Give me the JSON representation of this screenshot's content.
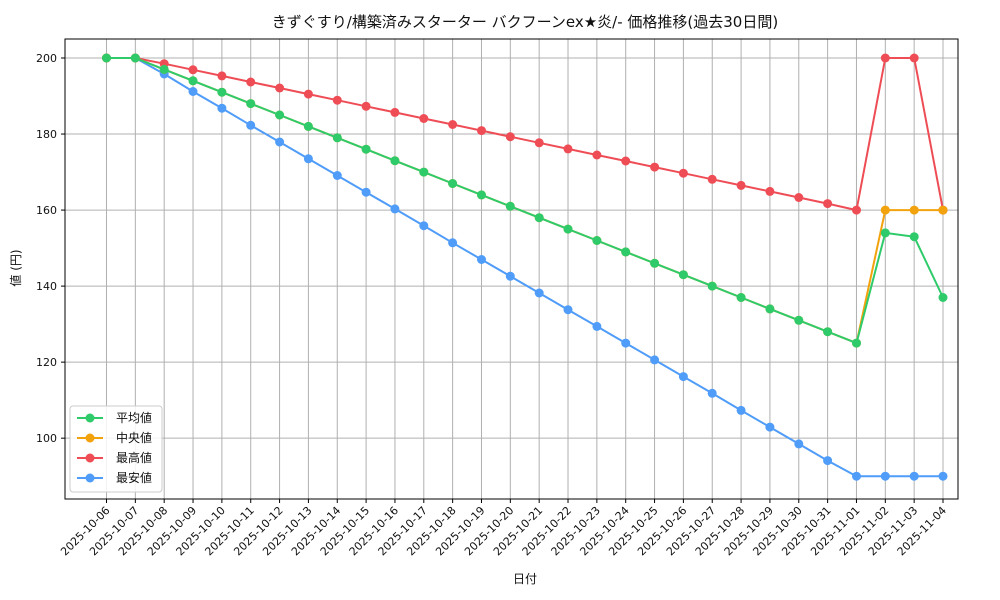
{
  "chart_data": {
    "type": "line",
    "title": "きずぐすり/構築済みスターター バクフーンex★炎/- 価格推移(過去30日間)",
    "xlabel": "日付",
    "ylabel": "値 (円)",
    "ylim": [
      84,
      205
    ],
    "yticks": [
      100,
      120,
      140,
      160,
      180,
      200
    ],
    "grid": true,
    "legend_position": "lower-left",
    "categories": [
      "2025-10-06",
      "2025-10-07",
      "2025-10-08",
      "2025-10-09",
      "2025-10-10",
      "2025-10-11",
      "2025-10-12",
      "2025-10-13",
      "2025-10-14",
      "2025-10-15",
      "2025-10-16",
      "2025-10-17",
      "2025-10-18",
      "2025-10-19",
      "2025-10-20",
      "2025-10-21",
      "2025-10-22",
      "2025-10-23",
      "2025-10-24",
      "2025-10-25",
      "2025-10-26",
      "2025-10-27",
      "2025-10-28",
      "2025-10-29",
      "2025-10-30",
      "2025-10-31",
      "2025-11-01",
      "2025-11-02",
      "2025-11-03",
      "2025-11-04"
    ],
    "series": [
      {
        "name": "最安値",
        "color": "#4f9cf9",
        "values": [
          200,
          200,
          195.8,
          191.2,
          186.8,
          182.3,
          177.9,
          173.5,
          169.1,
          164.7,
          160.3,
          155.9,
          151.4,
          147.0,
          142.6,
          138.2,
          133.8,
          129.4,
          125.0,
          120.6,
          116.2,
          111.8,
          107.3,
          102.9,
          98.5,
          94.1,
          90,
          90,
          90,
          90
        ]
      },
      {
        "name": "最高値",
        "color": "#ef4d56",
        "values": [
          200,
          200,
          198.5,
          196.9,
          195.3,
          193.7,
          192.1,
          190.5,
          188.9,
          187.3,
          185.7,
          184.1,
          182.5,
          180.9,
          179.3,
          177.7,
          176.1,
          174.5,
          172.9,
          171.3,
          169.7,
          168.1,
          166.5,
          164.9,
          163.3,
          161.7,
          160,
          200,
          200,
          160
        ]
      },
      {
        "name": "中央値",
        "color": "#f2a20c",
        "values": [
          200,
          200,
          197,
          194,
          191,
          188,
          185,
          182,
          179,
          176,
          173,
          170,
          167,
          164,
          161,
          158,
          155,
          152,
          149,
          146,
          143,
          140,
          137,
          134,
          131,
          128,
          125,
          160,
          160,
          160
        ]
      },
      {
        "name": "平均値",
        "color": "#2fcb6b",
        "values": [
          200,
          200,
          197,
          194,
          191,
          188,
          185,
          182,
          179,
          176,
          173,
          170,
          167,
          164,
          161,
          158,
          155,
          152,
          149,
          146,
          143,
          140,
          137,
          134,
          131,
          128,
          125,
          154,
          153,
          137
        ]
      }
    ],
    "legend_order": [
      "平均値",
      "中央値",
      "最高値",
      "最安値"
    ]
  }
}
